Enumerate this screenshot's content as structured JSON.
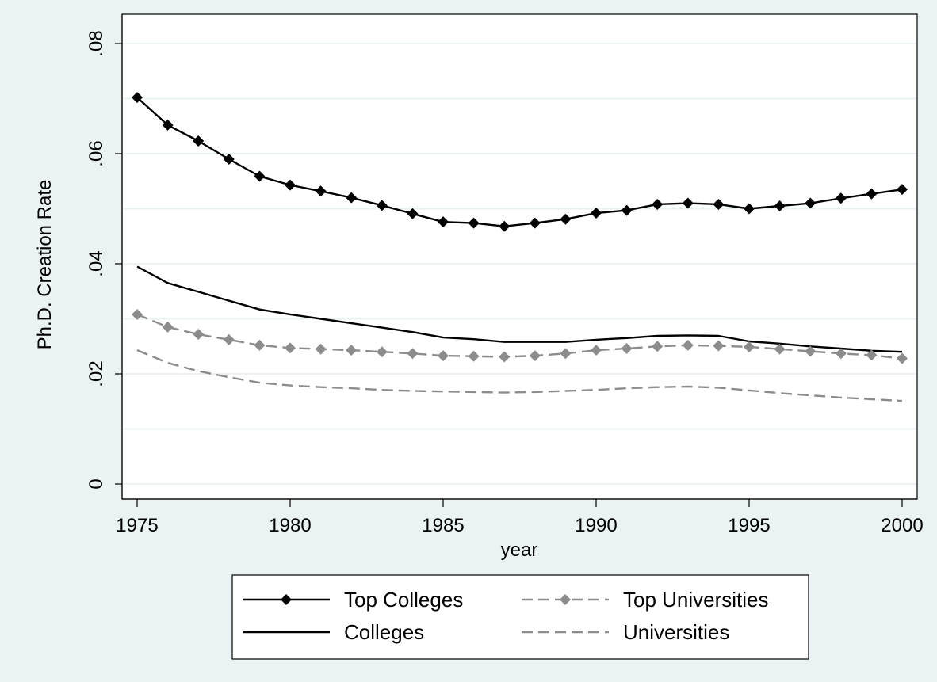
{
  "chart_data": {
    "type": "line",
    "xlabel": "year",
    "ylabel": "Ph.D. Creation Rate",
    "xlim": [
      1975,
      2000
    ],
    "ylim": [
      0,
      0.08
    ],
    "x_ticks": [
      {
        "value": 1975,
        "label": "1975"
      },
      {
        "value": 1980,
        "label": "1980"
      },
      {
        "value": 1985,
        "label": "1985"
      },
      {
        "value": 1990,
        "label": "1990"
      },
      {
        "value": 1995,
        "label": "1995"
      },
      {
        "value": 2000,
        "label": "2000"
      }
    ],
    "y_ticks": [
      {
        "value": 0,
        "label": "0"
      },
      {
        "value": 0.02,
        "label": ".02"
      },
      {
        "value": 0.04,
        "label": ".04"
      },
      {
        "value": 0.06,
        "label": ".06"
      },
      {
        "value": 0.08,
        "label": ".08"
      }
    ],
    "grid": true,
    "legend_position": "bottom",
    "x": [
      1975,
      1976,
      1977,
      1978,
      1979,
      1980,
      1981,
      1982,
      1983,
      1984,
      1985,
      1986,
      1987,
      1988,
      1989,
      1990,
      1991,
      1992,
      1993,
      1994,
      1995,
      1996,
      1997,
      1998,
      1999,
      2000
    ],
    "series": [
      {
        "name": "Top Colleges",
        "color": "#000000",
        "line": "solid",
        "marker": "diamond",
        "values": [
          0.0702,
          0.0652,
          0.0623,
          0.059,
          0.0559,
          0.0543,
          0.0532,
          0.052,
          0.0506,
          0.0491,
          0.0476,
          0.0474,
          0.0468,
          0.0474,
          0.0481,
          0.0492,
          0.0497,
          0.0508,
          0.051,
          0.0508,
          0.05,
          0.0505,
          0.051,
          0.0519,
          0.0527,
          0.0535
        ]
      },
      {
        "name": "Top Universities",
        "color": "#8c8c8c",
        "line": "dashed",
        "marker": "diamond",
        "values": [
          0.0308,
          0.0285,
          0.0272,
          0.0262,
          0.0252,
          0.0247,
          0.0245,
          0.0243,
          0.024,
          0.0237,
          0.0233,
          0.0232,
          0.0231,
          0.0233,
          0.0237,
          0.0243,
          0.0246,
          0.025,
          0.0252,
          0.0251,
          0.0249,
          0.0245,
          0.0241,
          0.0237,
          0.0234,
          0.0228
        ]
      },
      {
        "name": "Colleges",
        "color": "#000000",
        "line": "solid",
        "marker": "none",
        "values": [
          0.0395,
          0.0365,
          0.0349,
          0.0333,
          0.0317,
          0.0308,
          0.03,
          0.0292,
          0.0284,
          0.0276,
          0.0266,
          0.0263,
          0.0258,
          0.0258,
          0.0258,
          0.0262,
          0.0265,
          0.0269,
          0.027,
          0.0269,
          0.0259,
          0.0255,
          0.025,
          0.0246,
          0.0242,
          0.024
        ]
      },
      {
        "name": "Universities",
        "color": "#8c8c8c",
        "line": "dashed",
        "marker": "none",
        "values": [
          0.0243,
          0.022,
          0.0205,
          0.0194,
          0.0184,
          0.0179,
          0.0176,
          0.0174,
          0.0171,
          0.0169,
          0.0168,
          0.0167,
          0.0166,
          0.0167,
          0.0169,
          0.0171,
          0.0174,
          0.0176,
          0.0177,
          0.0175,
          0.017,
          0.0165,
          0.0161,
          0.0157,
          0.0154,
          0.0151
        ]
      }
    ]
  }
}
